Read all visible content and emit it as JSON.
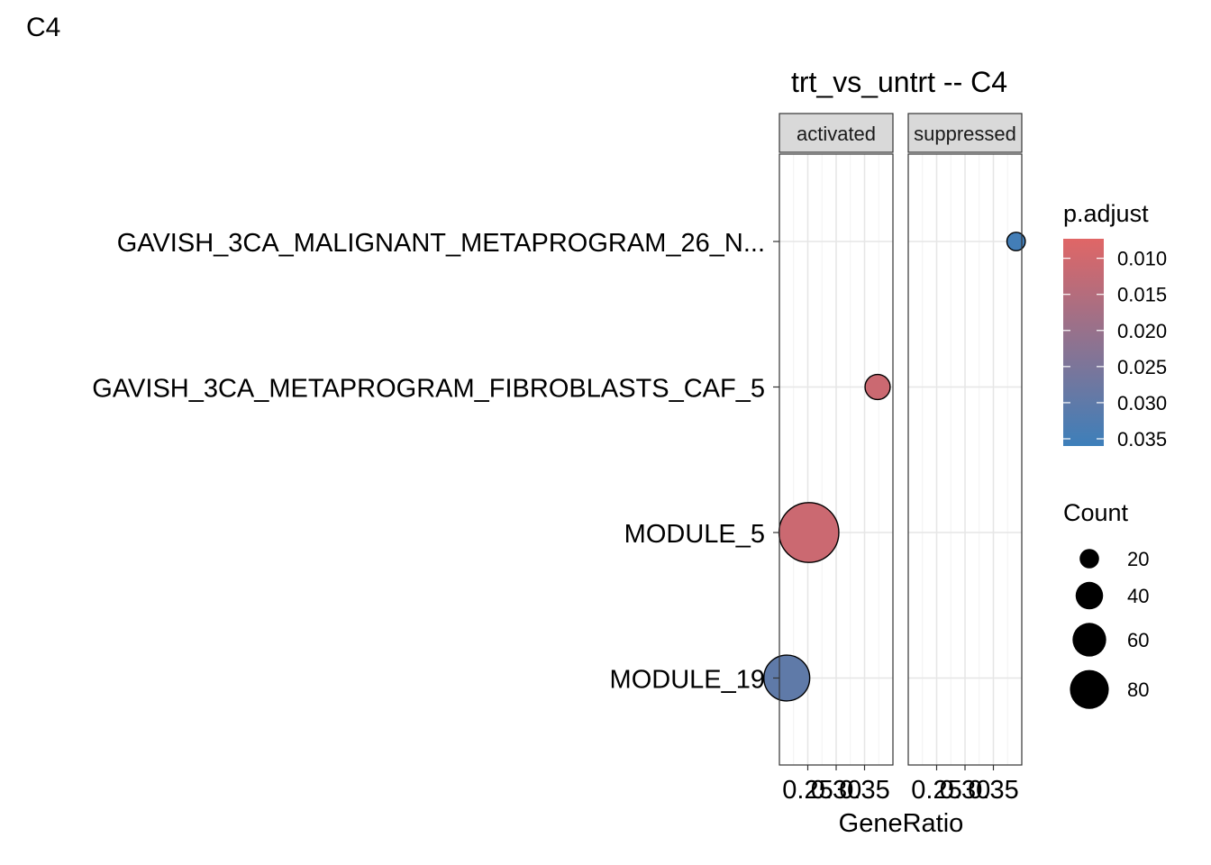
{
  "figure": {
    "tag": "C4"
  },
  "chart_data": {
    "type": "scatter",
    "title": "trt_vs_untrt -- C4",
    "xlabel": "GeneRatio",
    "ylabel": "",
    "facets": [
      "activated",
      "suppressed"
    ],
    "categories": [
      "GAVISH_3CA_MALIGNANT_METAPROGRAM_26_N...",
      "GAVISH_3CA_METAPROGRAM_FIBROBLASTS_CAF_5",
      "MODULE_5",
      "MODULE_19"
    ],
    "xlim": [
      0.2,
      0.4
    ],
    "xticks": [
      0.25,
      0.3,
      0.35
    ],
    "xtick_labels": [
      "0.25",
      "0.30",
      "0.35"
    ],
    "points": [
      {
        "facet": "activated",
        "term": "GAVISH_3CA_METAPROGRAM_FIBROBLASTS_CAF_5",
        "gene_ratio": 0.373,
        "p_adjust": 0.011,
        "count": 15
      },
      {
        "facet": "activated",
        "term": "MODULE_5",
        "gene_ratio": 0.252,
        "p_adjust": 0.011,
        "count": 85
      },
      {
        "facet": "activated",
        "term": "MODULE_19",
        "gene_ratio": 0.213,
        "p_adjust": 0.03,
        "count": 50
      },
      {
        "facet": "suppressed",
        "term": "GAVISH_3CA_MALIGNANT_METAPROGRAM_26_N...",
        "gene_ratio": 0.39,
        "p_adjust": 0.035,
        "count": 8
      }
    ],
    "color_legend": {
      "title": "p.adjust",
      "ticks": [
        0.01,
        0.015,
        0.02,
        0.025,
        0.03,
        0.035
      ],
      "tick_labels": [
        "0.010",
        "0.015",
        "0.020",
        "0.025",
        "0.030",
        "0.035"
      ],
      "range": [
        0.0073,
        0.036
      ],
      "low_color": "#e06666",
      "high_color": "#3d7fba"
    },
    "size_legend": {
      "title": "Count",
      "values": [
        20,
        40,
        60,
        80
      ],
      "labels": [
        "20",
        "40",
        "60",
        "80"
      ]
    },
    "grid": true,
    "legend_position": "right"
  }
}
